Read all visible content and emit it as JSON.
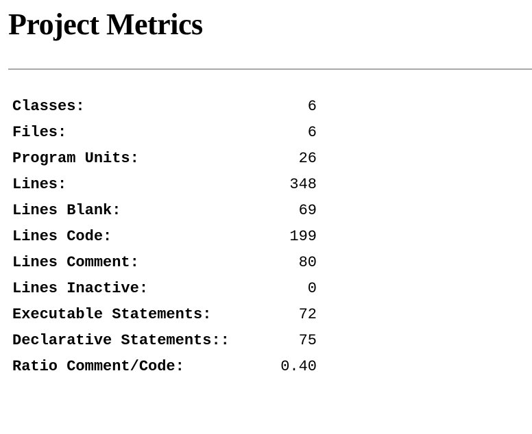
{
  "page": {
    "title": "Project Metrics"
  },
  "metrics": [
    {
      "label": "Classes:",
      "value": "6"
    },
    {
      "label": "Files:",
      "value": "6"
    },
    {
      "label": "Program Units:",
      "value": "26"
    },
    {
      "label": "Lines:",
      "value": "348"
    },
    {
      "label": "Lines Blank:",
      "value": "69"
    },
    {
      "label": "Lines Code:",
      "value": "199"
    },
    {
      "label": "Lines Comment:",
      "value": "80"
    },
    {
      "label": "Lines Inactive:",
      "value": "0"
    },
    {
      "label": "Executable Statements:",
      "value": "72"
    },
    {
      "label": "Declarative Statements::",
      "value": "75"
    },
    {
      "label": "Ratio Comment/Code:",
      "value": "0.40"
    }
  ]
}
